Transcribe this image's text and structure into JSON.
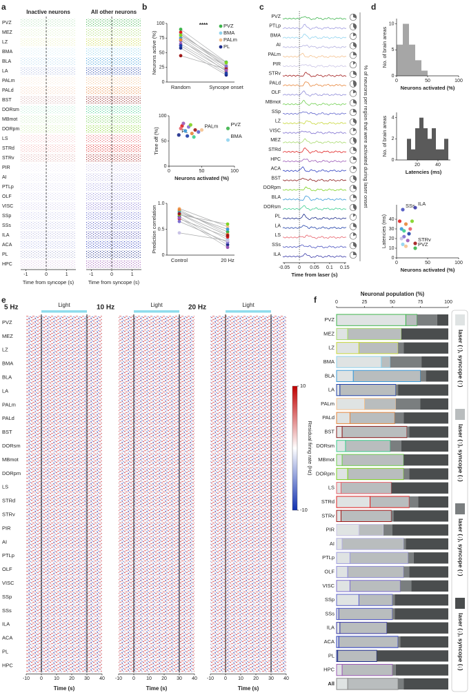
{
  "panel_labels": [
    "a",
    "b",
    "c",
    "d",
    "e",
    "f"
  ],
  "region_colors": {
    "PVZ": "#3cb44b",
    "MEZ": "#a6d96a",
    "LZ": "#c7d73a",
    "BMA": "#8fd3ef",
    "BLA": "#3a9ad9",
    "LA": "#1f3fa8",
    "PALm": "#f5c28f",
    "PALd": "#e8853a",
    "BST": "#8b1a1a",
    "DORsm": "#3ccf8e",
    "MBmot": "#6fcf4f",
    "DORpm": "#7ed321",
    "LS": "#e8606a",
    "STRd": "#e02020",
    "STRv": "#a01818",
    "PIR": "#c9c3e6",
    "AI": "#b3b0e0",
    "PTLp": "#9f9ce0",
    "OLF": "#8e8ad8",
    "VISC": "#7e6fd0",
    "SSp": "#5e63cc",
    "SSs": "#4a52c0",
    "ILA": "#3a3aa8",
    "ACA": "#2b3cc0",
    "PL": "#1a2a8a",
    "HPC": "#9b59b6",
    "All": "#888888"
  },
  "chart_data": [
    {
      "type": "raster",
      "titles": [
        "Inactive neurons",
        "All other neurons"
      ],
      "categories": [
        "PVZ",
        "MEZ",
        "LZ",
        "BMA",
        "BLA",
        "LA",
        "PALm",
        "PALd",
        "BST",
        "DORsm",
        "MBmot",
        "DORpm",
        "LS",
        "STRd",
        "STRv",
        "PIR",
        "AI",
        "PTLp",
        "OLF",
        "VISC",
        "SSp",
        "SSs",
        "ILA",
        "ACA",
        "PL",
        "HPC"
      ],
      "xlim": [
        -1.25,
        1.45
      ],
      "xticks": [
        -1,
        0,
        1
      ],
      "xlabel": "Time from syncope (s)"
    },
    {
      "type": "paired",
      "categories": [
        "Random",
        "Syncope onset"
      ],
      "ylabel": "Neurons active (%)",
      "annotation": "****",
      "ylim": [
        0,
        100
      ],
      "yticks": [
        0,
        25,
        50,
        75,
        100
      ],
      "legend": "upper right",
      "series": [
        {
          "name": "PVZ",
          "color": "#3cb44b",
          "values": [
            90,
            34
          ]
        },
        {
          "name": "BMA",
          "color": "#8fd3ef",
          "values": [
            82,
            30
          ]
        },
        {
          "name": "PALm",
          "color": "#f5c28f",
          "values": [
            78,
            28
          ]
        },
        {
          "name": "PL",
          "color": "#1a2a8a",
          "values": [
            58,
            12
          ]
        },
        {
          "color": "#e02020",
          "values": [
            85,
            25
          ]
        },
        {
          "color": "#3a9ad9",
          "values": [
            75,
            22
          ]
        },
        {
          "color": "#7e6fd0",
          "values": [
            70,
            27
          ]
        },
        {
          "color": "#e8853a",
          "values": [
            72,
            18
          ]
        },
        {
          "color": "#a01818",
          "values": [
            45,
            22
          ]
        },
        {
          "color": "#9b59b6",
          "values": [
            65,
            20
          ]
        },
        {
          "color": "#1f3fa8",
          "values": [
            62,
            15
          ]
        },
        {
          "color": "#7ed321",
          "values": [
            80,
            33
          ]
        }
      ]
    },
    {
      "type": "scatter",
      "xlabel": "Neurons activated (%)",
      "ylabel": "Time off (%)",
      "xlim": [
        0,
        100
      ],
      "xticks": [
        0,
        50,
        100
      ],
      "ylim": [
        0,
        100
      ],
      "yticks": [
        0,
        50,
        100
      ],
      "x": [
        15,
        50,
        90,
        90,
        20,
        25,
        30,
        35,
        40,
        22,
        28,
        33,
        18,
        45,
        38
      ],
      "y": [
        62,
        72,
        75,
        52,
        80,
        70,
        78,
        65,
        72,
        85,
        60,
        82,
        75,
        68,
        58
      ],
      "labels": [
        "PL",
        "PALm",
        "PVZ",
        "BMA",
        null,
        null,
        null,
        null,
        null,
        null,
        null,
        null,
        null,
        null,
        null
      ],
      "colors": [
        "#1a2a8a",
        "#f5c28f",
        "#3cb44b",
        "#8fd3ef",
        "#e02020",
        "#3a9ad9",
        "#7e6fd0",
        "#e8853a",
        "#a01818",
        "#9b59b6",
        "#1f3fa8",
        "#7ed321",
        "#e8606a",
        "#5e63cc",
        "#3ccf8e"
      ]
    },
    {
      "type": "paired",
      "categories": [
        "Control",
        "20 Hz"
      ],
      "ylabel": "Prediction correlation",
      "ylim": [
        0,
        1
      ],
      "yticks": [
        0,
        0.5,
        {
          "value": 1,
          "label": "1.0"
        }
      ],
      "series": [
        {
          "color": "#3cb44b",
          "values": [
            0.85,
            0.45
          ]
        },
        {
          "color": "#8fd3ef",
          "values": [
            0.8,
            0.3
          ]
        },
        {
          "color": "#f5c28f",
          "values": [
            0.9,
            0.55
          ]
        },
        {
          "color": "#1a2a8a",
          "values": [
            0.75,
            0.2
          ]
        },
        {
          "color": "#e02020",
          "values": [
            0.7,
            0.35
          ]
        },
        {
          "color": "#3a9ad9",
          "values": [
            0.82,
            0.5
          ]
        },
        {
          "color": "#7e6fd0",
          "values": [
            0.65,
            0.25
          ]
        },
        {
          "color": "#e8853a",
          "values": [
            0.88,
            0.4
          ]
        },
        {
          "color": "#7ed321",
          "values": [
            0.78,
            0.6
          ]
        },
        {
          "color": "#9b59b6",
          "values": [
            0.72,
            0.15
          ]
        },
        {
          "color": "#c9c3e6",
          "values": [
            0.43,
            0.28
          ]
        },
        {
          "color": "#a01818",
          "values": [
            0.8,
            0.38
          ]
        }
      ]
    },
    {
      "type": "traces",
      "categories": [
        "PVZ",
        "PTLp",
        "BMA",
        "AI",
        "PALm",
        "PIR",
        "STRv",
        "PALd",
        "OLF",
        "MBmot",
        "SSp",
        "LZ",
        "VISC",
        "MEZ",
        "STRd",
        "HPC",
        "ACA",
        "BST",
        "DORpm",
        "BLA",
        "DORsm",
        "PL",
        "LA",
        "LS",
        "SSs",
        "ILA"
      ],
      "values": [
        30,
        40,
        20,
        35,
        25,
        15,
        30,
        45,
        20,
        30,
        25,
        35,
        20,
        40,
        30,
        25,
        20,
        35,
        30,
        25,
        40,
        15,
        30,
        20,
        35,
        25
      ],
      "xlim": [
        -0.055,
        0.155
      ],
      "xticks": [
        -0.05,
        0,
        0.05,
        0.1,
        0.15
      ],
      "xlabel": "Time from laser (s)",
      "side_label": "% of neurons per region that were activated during laser onset"
    },
    {
      "type": "histogram",
      "xlabel": "Neurons activated (%)",
      "ylabel": "No. of brain areas",
      "color": "#a6a6a6",
      "bins": [
        0,
        10,
        20,
        30,
        40,
        50
      ],
      "values": [
        6,
        10,
        6,
        3,
        1
      ],
      "xlim": [
        0,
        100
      ],
      "xticks": [
        0,
        50,
        100
      ],
      "ylim": [
        0,
        11
      ],
      "yticks": [
        0,
        5,
        10
      ]
    },
    {
      "type": "histogram",
      "xlabel": "Latencies (ms)",
      "ylabel": "No. of brain areas",
      "color": "#5a5a5a",
      "bins": [
        10,
        14,
        18,
        22,
        26,
        30,
        34,
        38,
        42,
        46,
        50
      ],
      "values": [
        2,
        1,
        3,
        4,
        3,
        2,
        3,
        1,
        1,
        2
      ],
      "xlim": [
        0,
        52
      ],
      "xticks": [
        20,
        40
      ],
      "ylim": [
        0,
        4.5
      ],
      "yticks": [
        0,
        2,
        4
      ]
    },
    {
      "type": "scatter",
      "xlabel": "Neurons activated (%)",
      "ylabel": "Latencies (ms)",
      "xlim": [
        0,
        100
      ],
      "xticks": [
        0,
        50,
        100
      ],
      "ylim": [
        0,
        55
      ],
      "yticks": [
        0,
        10,
        20,
        30,
        40
      ],
      "x": [
        10,
        30,
        30,
        30,
        5,
        8,
        12,
        15,
        20,
        18,
        25,
        10,
        22,
        8,
        15,
        12
      ],
      "y": [
        50,
        52,
        15,
        10,
        38,
        30,
        22,
        35,
        25,
        18,
        38,
        14,
        30,
        20,
        12,
        28
      ],
      "labels": [
        "SSs",
        "ILA",
        "STRv",
        "PVZ",
        null,
        null,
        null,
        null,
        null,
        null,
        null,
        null,
        null,
        null,
        null,
        null
      ],
      "colors": [
        "#4a52c0",
        "#3a3aa8",
        "#a01818",
        "#3cb44b",
        "#e02020",
        "#3a9ad9",
        "#7e6fd0",
        "#e8853a",
        "#1f3fa8",
        "#9b59b6",
        "#7ed321",
        "#8fd3ef",
        "#e8606a",
        "#c9c3e6",
        "#f5c28f",
        "#3ccf8e"
      ]
    },
    {
      "type": "heatmap",
      "titles": [
        "5 Hz",
        "10 Hz",
        "20 Hz"
      ],
      "light_label": "Light",
      "light": [
        0,
        30
      ],
      "categories": [
        "PVZ",
        "MEZ",
        "LZ",
        "BMA",
        "BLA",
        "LA",
        "PALm",
        "PALd",
        "BST",
        "DORsm",
        "MBmot",
        "DORpm",
        "LS",
        "STRd",
        "STRv",
        "PIR",
        "AI",
        "PTLp",
        "OLF",
        "VISC",
        "SSp",
        "SSs",
        "ILA",
        "ACA",
        "PL",
        "HPC"
      ],
      "xlim": [
        -10,
        40
      ],
      "xticks": [
        -10,
        0,
        10,
        20,
        30,
        40
      ],
      "xlabel": "Time (s)",
      "colorbar": {
        "label": "Residual firing rate (Hz)",
        "lim": [
          -10,
          10
        ],
        "ticks": [
          10,
          -10
        ]
      }
    },
    {
      "type": "stacked_barh",
      "xlabel": "Neuronal population (%)",
      "xlim": [
        0,
        100
      ],
      "xticks": [
        0,
        25,
        50,
        75,
        100
      ],
      "categories": [
        "PVZ",
        "MEZ",
        "LZ",
        "BMA",
        "BLA",
        "LA",
        "PALm",
        "PALd",
        "BST",
        "DORsm",
        "MBmot",
        "DORpm",
        "LS",
        "STRd",
        "STRv",
        "PIR",
        "AI",
        "PTLp",
        "OLF",
        "VISC",
        "SSp",
        "SSs",
        "ILA",
        "ACA",
        "PL",
        "HPC",
        "All"
      ],
      "series": [
        {
          "name": "laser (↑), syncope (↑)",
          "color": "#dfe3e3",
          "values": [
            62,
            10,
            20,
            40,
            15,
            3,
            25,
            12,
            5,
            8,
            5,
            10,
            4,
            30,
            4,
            20,
            5,
            12,
            10,
            12,
            20,
            2,
            3,
            2,
            1,
            5,
            10
          ]
        },
        {
          "name": "laser (↑), syncope (↓)",
          "color": "#b9bdbe",
          "values": [
            10,
            48,
            35,
            8,
            60,
            50,
            28,
            40,
            58,
            40,
            55,
            50,
            45,
            35,
            45,
            22,
            55,
            52,
            50,
            45,
            30,
            48,
            42,
            53,
            35,
            45,
            45
          ]
        },
        {
          "name": "laser (↓), syncope (↑)",
          "color": "#7a7e7f",
          "values": [
            18,
            0,
            5,
            28,
            5,
            2,
            22,
            8,
            2,
            10,
            0,
            5,
            0,
            8,
            2,
            8,
            2,
            5,
            5,
            10,
            2,
            2,
            0,
            2,
            0,
            3,
            5
          ]
        },
        {
          "name": "laser (↓), syncope (↓)",
          "color": "#4a4d4e",
          "values": [
            10,
            42,
            40,
            24,
            20,
            45,
            25,
            40,
            35,
            42,
            40,
            35,
            51,
            27,
            49,
            50,
            38,
            31,
            35,
            33,
            48,
            48,
            55,
            43,
            64,
            47,
            40
          ]
        }
      ]
    }
  ]
}
